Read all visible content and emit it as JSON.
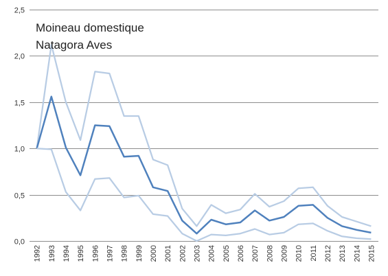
{
  "chart_data": {
    "type": "line",
    "title_lines": [
      "Moineau domestique",
      "Natagora Aves"
    ],
    "xlabel": "",
    "ylabel": "",
    "x": [
      "1992",
      "1993",
      "1994",
      "1995",
      "1996",
      "1997",
      "1998",
      "1999",
      "2000",
      "2001",
      "2002",
      "2003",
      "2004",
      "2005",
      "2006",
      "2007",
      "2008",
      "2009",
      "2010",
      "2011",
      "2012",
      "2013",
      "2014",
      "2015"
    ],
    "ylim": [
      0,
      2.5
    ],
    "y_ticks": [
      0,
      0.5,
      1.0,
      1.5,
      2.0,
      2.5
    ],
    "y_tick_labels": [
      "0,0",
      "0,5",
      "1,0",
      "1,5",
      "2,0",
      "2,5"
    ],
    "grid": "horizontal",
    "series": [
      {
        "role": "upper-bound",
        "color": "#b8cce4",
        "values": [
          1.0,
          2.12,
          1.5,
          1.09,
          1.83,
          1.81,
          1.35,
          1.35,
          0.88,
          0.82,
          0.35,
          0.16,
          0.39,
          0.3,
          0.34,
          0.51,
          0.37,
          0.43,
          0.57,
          0.58,
          0.38,
          0.26,
          0.21,
          0.16
        ]
      },
      {
        "role": "index",
        "color": "#4f81bd",
        "values": [
          1.0,
          1.56,
          1.01,
          0.71,
          1.25,
          1.24,
          0.91,
          0.92,
          0.58,
          0.54,
          0.22,
          0.08,
          0.23,
          0.18,
          0.2,
          0.33,
          0.22,
          0.26,
          0.38,
          0.39,
          0.25,
          0.16,
          0.12,
          0.09
        ]
      },
      {
        "role": "lower-bound",
        "color": "#b8cce4",
        "values": [
          1.0,
          0.99,
          0.53,
          0.33,
          0.67,
          0.68,
          0.47,
          0.49,
          0.29,
          0.27,
          0.08,
          0.0,
          0.07,
          0.06,
          0.08,
          0.13,
          0.07,
          0.09,
          0.18,
          0.19,
          0.11,
          0.05,
          0.03,
          0.02
        ]
      }
    ]
  }
}
